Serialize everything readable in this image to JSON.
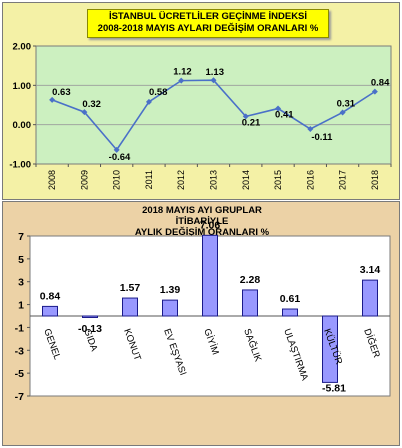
{
  "chart_data": [
    {
      "type": "line",
      "title": [
        "İSTANBUL ÜCRETLİLER GEÇİNME İNDEKSİ",
        "2008-2018 MAYIS AYLARI DEĞİŞİM ORANLARI %"
      ],
      "x": [
        "2008",
        "2009",
        "2010",
        "2011",
        "2012",
        "2013",
        "2014",
        "2015",
        "2016",
        "2017",
        "2018"
      ],
      "values": [
        0.63,
        0.32,
        -0.64,
        0.58,
        1.12,
        1.13,
        0.21,
        0.41,
        -0.11,
        0.31,
        0.84
      ],
      "value_labels": [
        "0.63",
        "0.32",
        "-0.64",
        "0.58",
        "1.12",
        "1.13",
        "0.21",
        "0.41",
        "-0.11",
        "0.31",
        "0.84"
      ],
      "ylim": [
        -1.0,
        2.0
      ],
      "yticks": [
        "2.00",
        "1.00",
        "0.00",
        "-1.00"
      ],
      "ytick_values": [
        2,
        1,
        0,
        -1
      ],
      "grid": true,
      "colors": {
        "line": "#4a70c8",
        "plot_bg": "#ccf0c0",
        "panel_bg": "#f4f1a6",
        "grid": "#9a9a9a"
      }
    },
    {
      "type": "bar",
      "title": [
        "2018 MAYIS AYI GRUPLAR İTİBARİYLE",
        "AYLIK DEĞİŞİM ORANLARI %"
      ],
      "categories": [
        "GENEL",
        "GIDA",
        "KONUT",
        "EV EŞYASI",
        "GİYİM",
        "SAĞLIK",
        "ULAŞTIRMA",
        "KÜLTÜR",
        "DİĞER"
      ],
      "values": [
        0.84,
        -0.13,
        1.57,
        1.39,
        7.06,
        2.28,
        0.61,
        -5.81,
        3.14
      ],
      "value_labels": [
        "0.84",
        "-0.13",
        "1.57",
        "1.39",
        "7.06",
        "2.28",
        "0.61",
        "-5.81",
        "3.14"
      ],
      "ylim": [
        -7,
        7
      ],
      "yticks": [
        "7",
        "5",
        "3",
        "1",
        "-1",
        "-3",
        "-5",
        "-7"
      ],
      "ytick_values": [
        7,
        5,
        3,
        1,
        -1,
        -3,
        -5,
        -7
      ],
      "grid": false,
      "colors": {
        "bar": "#9999ff",
        "bar_border": "#1a1a8a",
        "plot_bg": "#ffffff",
        "panel_bg": "#ecd2a6"
      }
    }
  ]
}
